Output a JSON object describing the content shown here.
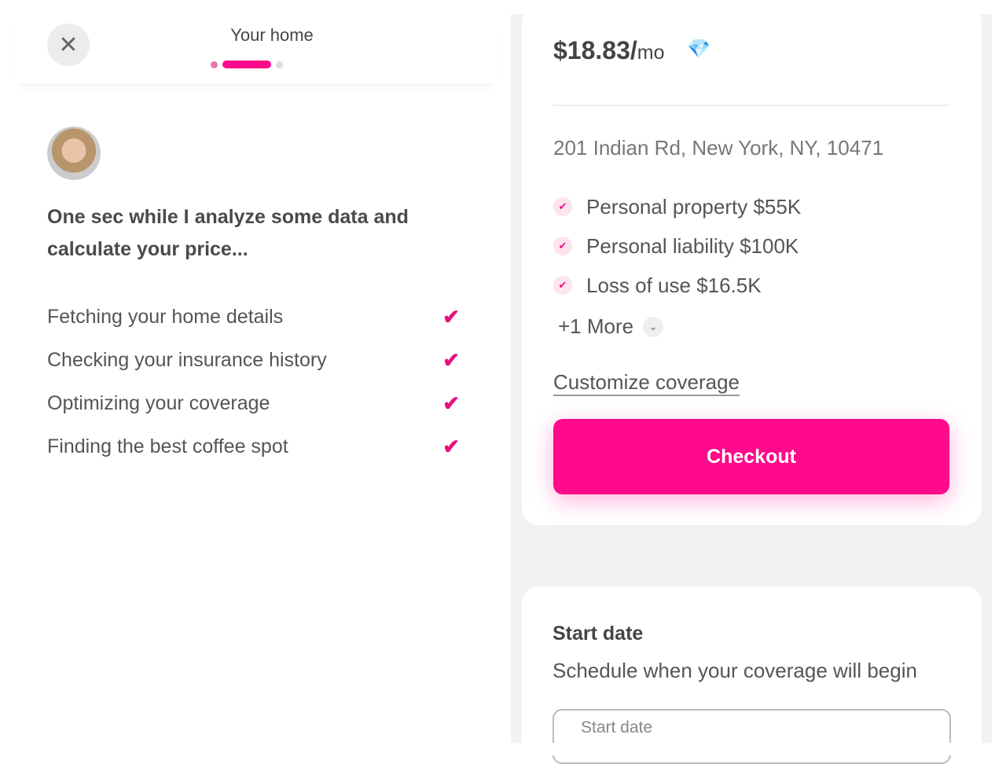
{
  "header": {
    "title": "Your home",
    "close_icon": "close-icon",
    "progress_step": 2,
    "progress_total": 3
  },
  "colors": {
    "accent": "#ff0a8a",
    "dot_done": "#e879b0",
    "dot_pending": "#dddddd"
  },
  "left": {
    "message": "One sec while I analyze some data and calculate your price...",
    "steps": [
      {
        "label": "Fetching your home details",
        "done": true
      },
      {
        "label": "Checking your insurance history",
        "done": true
      },
      {
        "label": "Optimizing your coverage",
        "done": true
      },
      {
        "label": "Finding the best coffee spot",
        "done": true
      }
    ]
  },
  "quote": {
    "price": "$18.83/",
    "period": "mo",
    "address": "201 Indian Rd, New York, NY, 10471",
    "coverages": [
      "Personal property $55K",
      "Personal liability $100K",
      "Loss of use $16.5K"
    ],
    "more": "+1 More",
    "customize": "Customize coverage",
    "checkout": "Checkout"
  },
  "start_date": {
    "heading": "Start date",
    "subtitle": "Schedule when your coverage will begin",
    "field_label": "Start date"
  }
}
